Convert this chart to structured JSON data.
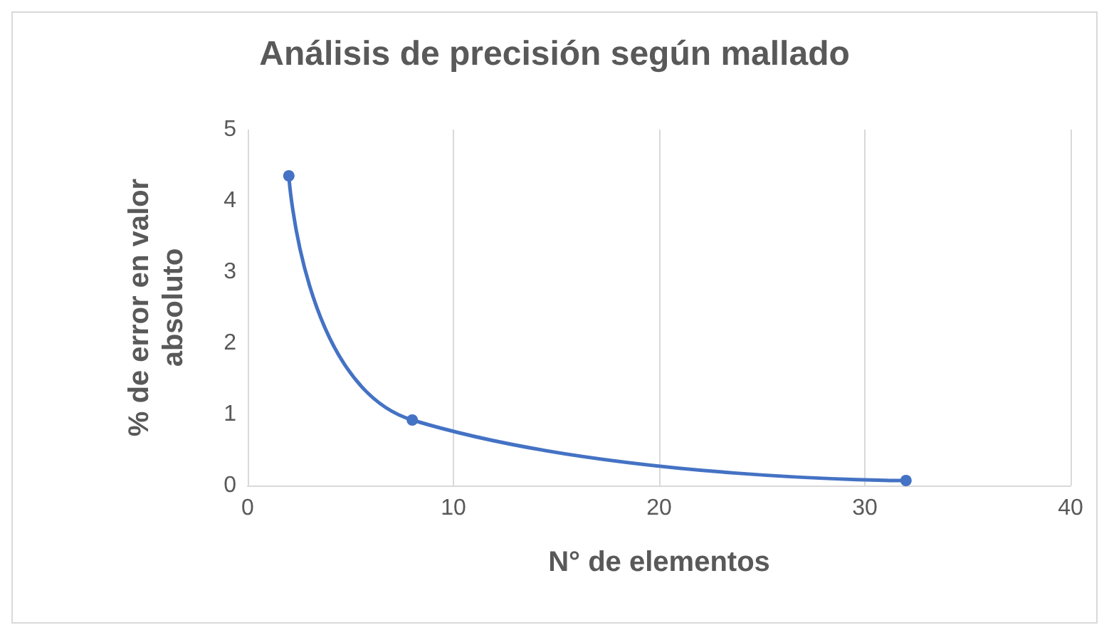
{
  "chart_data": {
    "type": "line",
    "title": "Análisis de precisión según mallado",
    "xlabel": "N° de elementos",
    "ylabel": "% de error en valor absoluto",
    "x": [
      2,
      8,
      32
    ],
    "series": [
      {
        "color": "#4472c4",
        "values": [
          4.35,
          0.92,
          0.07
        ]
      }
    ],
    "xlim": [
      0,
      40
    ],
    "xticks": [
      0,
      10,
      20,
      30,
      40
    ],
    "ylim": [
      0,
      5
    ],
    "yticks": [
      0,
      1,
      2,
      3,
      4,
      5
    ],
    "grid": "x",
    "marker": "circle",
    "line_style": "solid"
  }
}
